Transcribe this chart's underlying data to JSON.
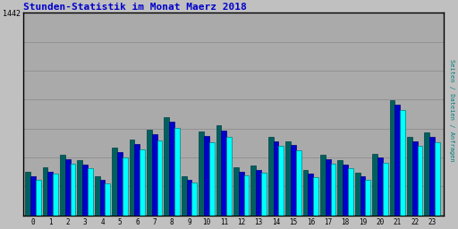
{
  "title": "Stunden-Statistik im Monat Maerz 2018",
  "title_color": "#0000cc",
  "ylabel": "Seiten / Dateien / Anfragen",
  "ylabel_color": "#008080",
  "fig_bg_color": "#c0c0c0",
  "plot_bg_color": "#aaaaaa",
  "hours": [
    0,
    1,
    2,
    3,
    4,
    5,
    6,
    7,
    8,
    9,
    10,
    11,
    12,
    13,
    14,
    15,
    16,
    17,
    18,
    19,
    20,
    21,
    22,
    23
  ],
  "seiten": [
    310,
    340,
    430,
    390,
    280,
    480,
    540,
    610,
    700,
    280,
    600,
    640,
    340,
    355,
    560,
    530,
    320,
    430,
    390,
    305,
    440,
    820,
    560,
    590
  ],
  "dateien": [
    280,
    310,
    400,
    360,
    250,
    450,
    510,
    575,
    665,
    255,
    565,
    605,
    310,
    325,
    530,
    500,
    295,
    400,
    360,
    278,
    410,
    785,
    530,
    558
  ],
  "anfragen": [
    255,
    295,
    365,
    335,
    230,
    415,
    470,
    535,
    620,
    235,
    520,
    560,
    285,
    305,
    495,
    460,
    270,
    370,
    335,
    255,
    375,
    750,
    495,
    520
  ],
  "color_seiten": "#006060",
  "color_dateien": "#0000cc",
  "color_anfragen": "#00ffff",
  "edge_seiten": "#004040",
  "edge_dateien": "#000080",
  "edge_anfragen": "#008080",
  "bar_width": 0.3,
  "ylim_max": 1442,
  "grid_color": "#888888",
  "grid_levels": 7,
  "figsize": [
    5.12,
    2.56
  ],
  "dpi": 100
}
